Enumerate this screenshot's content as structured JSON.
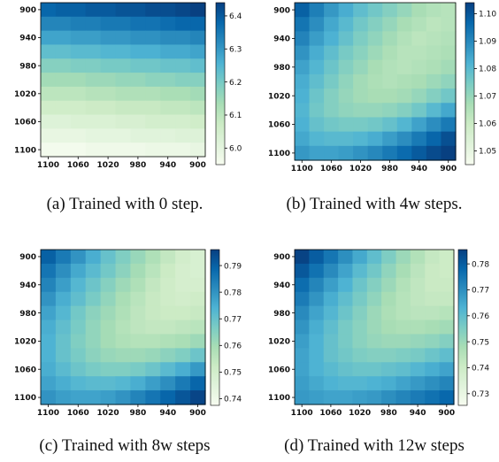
{
  "panels": [
    {
      "caption": "(a)  Trained with 0 step.",
      "chart_data": {
        "type": "heatmap",
        "x_categories": [
          "1100",
          "1080",
          "1060",
          "1040",
          "1020",
          "1000",
          "980",
          "960",
          "940",
          "920",
          "900"
        ],
        "y_categories": [
          "900",
          "920",
          "940",
          "960",
          "980",
          "1000",
          "1020",
          "1040",
          "1060",
          "1080",
          "1100"
        ],
        "x_tick_labels": [
          "1100",
          "1060",
          "1020",
          "980",
          "940",
          "900"
        ],
        "y_tick_labels": [
          "900",
          "940",
          "980",
          "1020",
          "1060",
          "1100"
        ],
        "colorbar_ticks": [
          "6.0",
          "6.1",
          "6.2",
          "6.3",
          "6.4"
        ],
        "vmin": 5.95,
        "vmax": 6.44,
        "colormap": [
          "#f7fcf0",
          "#e0f3db",
          "#ccebc5",
          "#a8ddb5",
          "#7bccc4",
          "#4eb3d3",
          "#2b8cbe",
          "#0868ac",
          "#084081"
        ],
        "values": [
          [
            6.38,
            6.39,
            6.39,
            6.4,
            6.4,
            6.41,
            6.41,
            6.42,
            6.42,
            6.43,
            6.44
          ],
          [
            6.33,
            6.33,
            6.34,
            6.34,
            6.35,
            6.35,
            6.36,
            6.36,
            6.37,
            6.38,
            6.38
          ],
          [
            6.28,
            6.28,
            6.29,
            6.29,
            6.3,
            6.3,
            6.31,
            6.31,
            6.32,
            6.32,
            6.33
          ],
          [
            6.23,
            6.23,
            6.24,
            6.24,
            6.25,
            6.25,
            6.26,
            6.26,
            6.27,
            6.27,
            6.28
          ],
          [
            6.18,
            6.18,
            6.19,
            6.19,
            6.2,
            6.2,
            6.21,
            6.21,
            6.22,
            6.22,
            6.23
          ],
          [
            6.14,
            6.14,
            6.14,
            6.15,
            6.15,
            6.16,
            6.16,
            6.17,
            6.17,
            6.18,
            6.18
          ],
          [
            6.1,
            6.1,
            6.1,
            6.11,
            6.11,
            6.12,
            6.12,
            6.12,
            6.13,
            6.13,
            6.14
          ],
          [
            6.06,
            6.06,
            6.06,
            6.07,
            6.07,
            6.08,
            6.08,
            6.08,
            6.09,
            6.09,
            6.1
          ],
          [
            6.02,
            6.02,
            6.03,
            6.03,
            6.03,
            6.04,
            6.04,
            6.05,
            6.05,
            6.05,
            6.06
          ],
          [
            5.99,
            5.99,
            5.99,
            6.0,
            6.0,
            6.0,
            6.01,
            6.01,
            6.01,
            6.02,
            6.02
          ],
          [
            5.96,
            5.96,
            5.96,
            5.97,
            5.97,
            5.97,
            5.97,
            5.98,
            5.98,
            5.98,
            5.99
          ]
        ]
      }
    },
    {
      "caption": "(b)  Trained with 4w steps.",
      "chart_data": {
        "type": "heatmap",
        "x_categories": [
          "1100",
          "1080",
          "1060",
          "1040",
          "1020",
          "1000",
          "980",
          "960",
          "940",
          "920",
          "900"
        ],
        "y_categories": [
          "900",
          "920",
          "940",
          "960",
          "980",
          "1000",
          "1020",
          "1040",
          "1060",
          "1080",
          "1100"
        ],
        "x_tick_labels": [
          "1100",
          "1060",
          "1020",
          "980",
          "940",
          "900"
        ],
        "y_tick_labels": [
          "900",
          "940",
          "980",
          "1020",
          "1060",
          "1100"
        ],
        "colorbar_ticks": [
          "1.05",
          "1.06",
          "1.07",
          "1.08",
          "1.09",
          "1.10"
        ],
        "vmin": 1.045,
        "vmax": 1.104,
        "colormap": [
          "#f7fcf0",
          "#e0f3db",
          "#ccebc5",
          "#a8ddb5",
          "#7bccc4",
          "#4eb3d3",
          "#2b8cbe",
          "#0868ac",
          "#084081"
        ],
        "values": [
          [
            1.098,
            1.092,
            1.087,
            1.083,
            1.079,
            1.076,
            1.073,
            1.07,
            1.067,
            1.065,
            1.064
          ],
          [
            1.094,
            1.089,
            1.084,
            1.08,
            1.076,
            1.073,
            1.07,
            1.067,
            1.065,
            1.063,
            1.064
          ],
          [
            1.091,
            1.086,
            1.082,
            1.078,
            1.074,
            1.071,
            1.068,
            1.065,
            1.063,
            1.064,
            1.065
          ],
          [
            1.088,
            1.083,
            1.079,
            1.075,
            1.072,
            1.069,
            1.066,
            1.064,
            1.064,
            1.065,
            1.066
          ],
          [
            1.085,
            1.081,
            1.077,
            1.073,
            1.07,
            1.067,
            1.065,
            1.064,
            1.065,
            1.066,
            1.068
          ],
          [
            1.083,
            1.079,
            1.075,
            1.071,
            1.068,
            1.066,
            1.065,
            1.066,
            1.067,
            1.069,
            1.071
          ],
          [
            1.082,
            1.077,
            1.073,
            1.07,
            1.068,
            1.067,
            1.067,
            1.068,
            1.07,
            1.073,
            1.076
          ],
          [
            1.081,
            1.076,
            1.073,
            1.071,
            1.07,
            1.07,
            1.071,
            1.073,
            1.076,
            1.08,
            1.084
          ],
          [
            1.082,
            1.078,
            1.076,
            1.075,
            1.075,
            1.076,
            1.078,
            1.081,
            1.085,
            1.089,
            1.093
          ],
          [
            1.084,
            1.081,
            1.08,
            1.08,
            1.081,
            1.083,
            1.086,
            1.089,
            1.093,
            1.097,
            1.101
          ],
          [
            1.087,
            1.085,
            1.085,
            1.086,
            1.088,
            1.09,
            1.093,
            1.096,
            1.099,
            1.102,
            1.104
          ]
        ]
      }
    },
    {
      "caption": "(c)  Trained with 8w steps",
      "chart_data": {
        "type": "heatmap",
        "x_categories": [
          "1100",
          "1080",
          "1060",
          "1040",
          "1020",
          "1000",
          "980",
          "960",
          "940",
          "920",
          "900"
        ],
        "y_categories": [
          "900",
          "920",
          "940",
          "960",
          "980",
          "1000",
          "1020",
          "1040",
          "1060",
          "1080",
          "1100"
        ],
        "x_tick_labels": [
          "1100",
          "1060",
          "1020",
          "980",
          "940",
          "900"
        ],
        "y_tick_labels": [
          "900",
          "940",
          "980",
          "1020",
          "1060",
          "1100"
        ],
        "colorbar_ticks": [
          "0.74",
          "0.75",
          "0.76",
          "0.77",
          "0.78",
          "0.79"
        ],
        "vmin": 0.7375,
        "vmax": 0.796,
        "colormap": [
          "#f7fcf0",
          "#e0f3db",
          "#ccebc5",
          "#a8ddb5",
          "#7bccc4",
          "#4eb3d3",
          "#2b8cbe",
          "#0868ac",
          "#084081"
        ],
        "values": [
          [
            0.79,
            0.785,
            0.78,
            0.775,
            0.77,
            0.766,
            0.762,
            0.758,
            0.754,
            0.75,
            0.748
          ],
          [
            0.786,
            0.781,
            0.776,
            0.772,
            0.768,
            0.764,
            0.76,
            0.756,
            0.752,
            0.749,
            0.748
          ],
          [
            0.783,
            0.778,
            0.773,
            0.769,
            0.765,
            0.761,
            0.758,
            0.754,
            0.751,
            0.749,
            0.749
          ],
          [
            0.78,
            0.775,
            0.771,
            0.767,
            0.763,
            0.759,
            0.756,
            0.753,
            0.751,
            0.75,
            0.751
          ],
          [
            0.777,
            0.773,
            0.768,
            0.764,
            0.761,
            0.758,
            0.755,
            0.753,
            0.752,
            0.752,
            0.753
          ],
          [
            0.775,
            0.771,
            0.767,
            0.763,
            0.76,
            0.757,
            0.755,
            0.754,
            0.754,
            0.755,
            0.756
          ],
          [
            0.774,
            0.77,
            0.766,
            0.763,
            0.76,
            0.758,
            0.757,
            0.757,
            0.758,
            0.759,
            0.761
          ],
          [
            0.774,
            0.77,
            0.767,
            0.764,
            0.762,
            0.761,
            0.761,
            0.762,
            0.764,
            0.766,
            0.769
          ],
          [
            0.775,
            0.772,
            0.769,
            0.767,
            0.766,
            0.766,
            0.767,
            0.769,
            0.772,
            0.775,
            0.779
          ],
          [
            0.777,
            0.775,
            0.773,
            0.772,
            0.772,
            0.773,
            0.775,
            0.778,
            0.781,
            0.785,
            0.789
          ],
          [
            0.78,
            0.778,
            0.777,
            0.777,
            0.778,
            0.78,
            0.783,
            0.786,
            0.789,
            0.792,
            0.795
          ]
        ]
      }
    },
    {
      "caption": "(d)  Trained with 12w steps",
      "chart_data": {
        "type": "heatmap",
        "x_categories": [
          "1100",
          "1080",
          "1060",
          "1040",
          "1020",
          "1000",
          "980",
          "960",
          "940",
          "920",
          "900"
        ],
        "y_categories": [
          "900",
          "920",
          "940",
          "960",
          "980",
          "1000",
          "1020",
          "1040",
          "1060",
          "1080",
          "1100"
        ],
        "x_tick_labels": [
          "1100",
          "1060",
          "1020",
          "980",
          "940",
          "900"
        ],
        "y_tick_labels": [
          "900",
          "940",
          "980",
          "1020",
          "1060",
          "1100"
        ],
        "colorbar_ticks": [
          "0.73",
          "0.74",
          "0.75",
          "0.76",
          "0.77",
          "0.78"
        ],
        "vmin": 0.7255,
        "vmax": 0.7855,
        "colormap": [
          "#f7fcf0",
          "#e0f3db",
          "#ccebc5",
          "#a8ddb5",
          "#7bccc4",
          "#4eb3d3",
          "#2b8cbe",
          "#0868ac",
          "#084081"
        ],
        "values": [
          [
            0.785,
            0.78,
            0.775,
            0.77,
            0.765,
            0.76,
            0.755,
            0.75,
            0.746,
            0.742,
            0.74
          ],
          [
            0.781,
            0.776,
            0.771,
            0.766,
            0.761,
            0.757,
            0.752,
            0.748,
            0.744,
            0.741,
            0.74
          ],
          [
            0.777,
            0.772,
            0.767,
            0.763,
            0.758,
            0.754,
            0.75,
            0.746,
            0.743,
            0.741,
            0.741
          ],
          [
            0.774,
            0.769,
            0.764,
            0.76,
            0.756,
            0.752,
            0.748,
            0.745,
            0.743,
            0.742,
            0.742
          ],
          [
            0.771,
            0.766,
            0.762,
            0.758,
            0.754,
            0.75,
            0.747,
            0.745,
            0.744,
            0.744,
            0.745
          ],
          [
            0.769,
            0.764,
            0.76,
            0.756,
            0.753,
            0.75,
            0.748,
            0.747,
            0.747,
            0.748,
            0.749
          ],
          [
            0.767,
            0.763,
            0.759,
            0.756,
            0.753,
            0.751,
            0.75,
            0.75,
            0.751,
            0.752,
            0.754
          ],
          [
            0.766,
            0.763,
            0.759,
            0.757,
            0.755,
            0.754,
            0.754,
            0.755,
            0.756,
            0.758,
            0.76
          ],
          [
            0.766,
            0.763,
            0.761,
            0.759,
            0.758,
            0.758,
            0.759,
            0.76,
            0.762,
            0.764,
            0.766
          ],
          [
            0.767,
            0.765,
            0.763,
            0.762,
            0.762,
            0.763,
            0.764,
            0.766,
            0.768,
            0.77,
            0.772
          ],
          [
            0.768,
            0.767,
            0.766,
            0.766,
            0.767,
            0.768,
            0.77,
            0.772,
            0.774,
            0.776,
            0.778
          ]
        ]
      }
    }
  ]
}
